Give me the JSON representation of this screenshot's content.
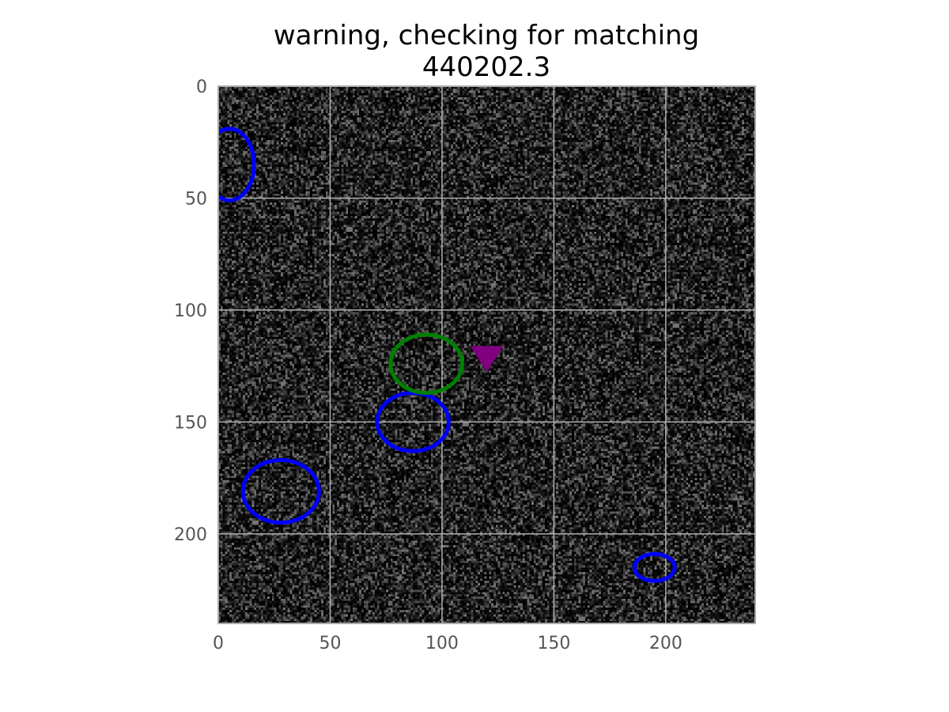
{
  "chart_data": {
    "type": "scatter",
    "title_lines": [
      "warning, checking for matching",
      "440202.3"
    ],
    "xlabel": "",
    "ylabel": "",
    "xlim": [
      0,
      240
    ],
    "ylim": [
      240,
      0
    ],
    "y_inverted": true,
    "background": "noisy-grayscale-image",
    "grid": true,
    "xticks": [
      0,
      50,
      100,
      150,
      200
    ],
    "yticks": [
      0,
      50,
      100,
      150,
      200
    ],
    "xtick_labels": [
      "0",
      "50",
      "100",
      "150",
      "200"
    ],
    "ytick_labels": [
      "0",
      "50",
      "100",
      "150",
      "200"
    ],
    "ellipses": [
      {
        "cx": 5,
        "cy": 35,
        "rx": 11,
        "ry": 16,
        "color": "#0000ff"
      },
      {
        "cx": 28,
        "cy": 181,
        "rx": 17,
        "ry": 14,
        "color": "#0000ff"
      },
      {
        "cx": 87,
        "cy": 150,
        "rx": 16,
        "ry": 13,
        "color": "#0000ff"
      },
      {
        "cx": 195,
        "cy": 215,
        "rx": 9,
        "ry": 6,
        "color": "#0000ff"
      },
      {
        "cx": 93,
        "cy": 124,
        "rx": 16,
        "ry": 13,
        "color": "#008000"
      }
    ],
    "markers": [
      {
        "x": 120,
        "y": 121,
        "shape": "triangle-down",
        "color": "#800080"
      }
    ]
  },
  "colors": {
    "grid": "#b0b0b0",
    "frame": "#aaaaaa",
    "tick_text": "#555555"
  }
}
